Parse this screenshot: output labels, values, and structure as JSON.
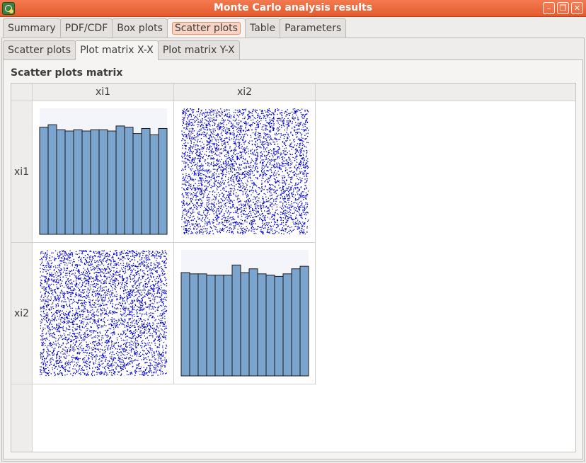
{
  "window": {
    "title": "Monte Carlo analysis results"
  },
  "main_tabs": [
    "Summary",
    "PDF/CDF",
    "Box plots",
    "Scatter plots",
    "Table",
    "Parameters"
  ],
  "sub_tabs": [
    "Scatter plots",
    "Plot matrix X-X",
    "Plot matrix Y-X"
  ],
  "group_title": "Scatter plots matrix",
  "matrix": {
    "columns": [
      "xi1",
      "xi2"
    ],
    "rows": [
      "xi1",
      "xi2"
    ]
  },
  "colors": {
    "hist_fill": "#7ba4cf",
    "hist_stroke": "#1a1a1a",
    "scatter_point": "#0000cc",
    "plot_bg": "#f4f5fa"
  },
  "chart_data": [
    {
      "type": "bar",
      "variable": "xi1",
      "values": [
        0.85,
        0.87,
        0.83,
        0.82,
        0.83,
        0.82,
        0.83,
        0.83,
        0.82,
        0.86,
        0.85,
        0.8,
        0.84,
        0.79,
        0.84
      ]
    },
    {
      "type": "scatter",
      "x_variable": "xi2",
      "y_variable": "xi1"
    },
    {
      "type": "scatter",
      "x_variable": "xi1",
      "y_variable": "xi2"
    },
    {
      "type": "bar",
      "variable": "xi2",
      "values": [
        0.82,
        0.81,
        0.81,
        0.8,
        0.8,
        0.8,
        0.88,
        0.82,
        0.85,
        0.81,
        0.8,
        0.79,
        0.81,
        0.85,
        0.87
      ]
    }
  ]
}
